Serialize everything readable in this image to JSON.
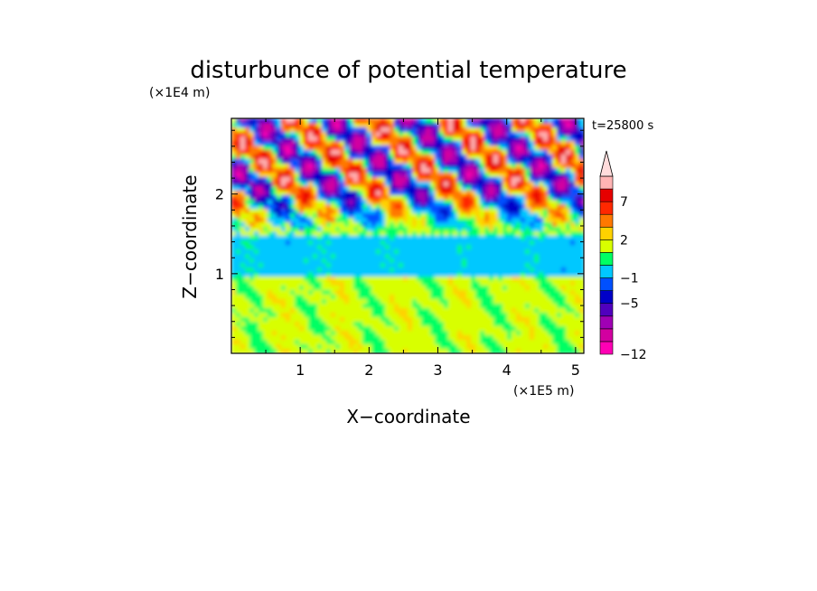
{
  "chart_data": {
    "type": "heatmap",
    "title": "disturbunce of potential temperature",
    "xlabel": "X−coordinate",
    "ylabel": "Z−coordinate",
    "x_unit": "(×1E5 m)",
    "y_unit": "(×1E4 m)",
    "time_label": "t=25800 s",
    "xlim": [
      0,
      5.12
    ],
    "ylim": [
      0,
      2.95
    ],
    "x_ticks": [
      {
        "v": 1,
        "label": "1"
      },
      {
        "v": 2,
        "label": "2"
      },
      {
        "v": 3,
        "label": "3"
      },
      {
        "v": 4,
        "label": "4"
      },
      {
        "v": 5,
        "label": "5"
      }
    ],
    "y_ticks": [
      {
        "v": 1,
        "label": "1"
      },
      {
        "v": 2,
        "label": "2"
      }
    ],
    "colorbar": {
      "levels": [
        -12,
        -10,
        -8,
        -6,
        -5,
        -3,
        -1,
        0,
        1,
        2,
        3,
        5,
        7,
        9
      ],
      "colors": [
        "#ff00b4",
        "#d200a0",
        "#a000b4",
        "#5000be",
        "#0000c8",
        "#0050ff",
        "#00c8ff",
        "#00ff64",
        "#d8ff00",
        "#ffd200",
        "#ff7800",
        "#ff2800",
        "#e60000",
        "#ffb4b4"
      ],
      "extend_top_color": "#ffdcdc",
      "labels": [
        {
          "v": -12,
          "label": "−12"
        },
        {
          "v": -5,
          "label": "−5"
        },
        {
          "v": -1,
          "label": "−1"
        },
        {
          "v": 2,
          "label": "2"
        },
        {
          "v": 7,
          "label": "7"
        }
      ]
    },
    "field_description_bands": [
      {
        "z_range": [
          0,
          0.95
        ],
        "dominant": "yellow/orange (0 to 3)"
      },
      {
        "z_range": [
          0.95,
          1.5
        ],
        "dominant": "green (-1 to 0)"
      },
      {
        "z_range": [
          1.5,
          2.95
        ],
        "dominant": "mixed -8 to 9, wave pattern"
      }
    ]
  }
}
